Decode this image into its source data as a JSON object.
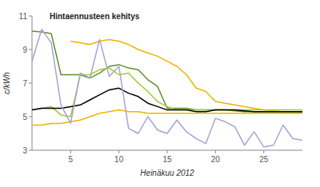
{
  "chart_data": {
    "type": "line",
    "title": "Hintaennusteen kehitys",
    "x_label": "Heinäkuu 2012",
    "y_label": "c/kWh",
    "x": [
      1,
      2,
      3,
      4,
      5,
      6,
      7,
      8,
      9,
      10,
      11,
      12,
      13,
      14,
      15,
      16,
      17,
      18,
      19,
      20,
      21,
      22,
      23,
      24,
      25,
      26,
      27,
      28,
      29
    ],
    "xlim": [
      1,
      29
    ],
    "xticks": [
      5,
      10,
      15,
      20,
      25
    ],
    "ylim": [
      3,
      11
    ],
    "yticks": [
      3,
      5,
      7,
      9,
      11
    ],
    "grid": false,
    "series": [
      {
        "color": "#f0b400",
        "values": [
          null,
          null,
          null,
          null,
          9.5,
          9.4,
          9.3,
          9.5,
          9.6,
          9.5,
          9.3,
          9.0,
          8.8,
          8.6,
          8.3,
          8.0,
          7.5,
          6.7,
          6.5,
          5.9,
          5.8,
          5.7,
          5.6,
          5.5,
          5.4,
          5.35,
          5.3,
          5.3,
          5.3
        ]
      },
      {
        "color": "#f0b400",
        "values": [
          4.5,
          4.5,
          4.6,
          4.6,
          4.7,
          4.8,
          5.0,
          5.2,
          5.3,
          5.4,
          5.3,
          5.3,
          5.2,
          5.2,
          5.2,
          5.2,
          5.2,
          5.2,
          5.2,
          5.2,
          5.2,
          5.2,
          5.2,
          5.2,
          5.2,
          5.2,
          5.2,
          5.2,
          5.2
        ]
      },
      {
        "color": "#5f8f2a",
        "values": [
          10.1,
          10.05,
          9.95,
          7.5,
          7.5,
          7.5,
          7.3,
          7.6,
          8.0,
          8.1,
          7.9,
          7.8,
          7.2,
          6.8,
          5.5,
          5.5,
          5.5,
          5.4,
          5.4,
          5.4,
          5.4,
          5.35,
          5.3,
          5.3,
          5.3,
          5.3,
          5.3,
          5.3,
          5.3
        ]
      },
      {
        "color": "#9acd32",
        "values": [
          5.4,
          5.5,
          5.6,
          5.1,
          5.0,
          7.5,
          7.5,
          7.8,
          7.9,
          7.5,
          7.6,
          7.0,
          6.5,
          5.9,
          5.6,
          5.4,
          5.4,
          5.4,
          5.4,
          5.4,
          5.4,
          5.4,
          5.4,
          5.4,
          5.4,
          5.4,
          5.4,
          5.4,
          5.4
        ]
      },
      {
        "color": "#000000",
        "values": [
          5.4,
          5.5,
          5.5,
          5.5,
          5.6,
          5.7,
          6.0,
          6.3,
          6.6,
          6.7,
          6.4,
          6.2,
          5.8,
          5.6,
          5.4,
          5.4,
          5.4,
          5.3,
          5.3,
          5.4,
          5.4,
          5.4,
          5.35,
          5.3,
          5.3,
          5.3,
          5.3,
          5.3,
          5.3
        ]
      },
      {
        "color": "#aaa0d8",
        "values": [
          8.3,
          10.2,
          9.4,
          5.7,
          4.6,
          7.6,
          7.3,
          9.6,
          7.4,
          8.0,
          4.3,
          4.0,
          5.0,
          4.2,
          4.0,
          4.8,
          4.1,
          3.7,
          3.4,
          4.9,
          4.7,
          4.4,
          3.3,
          4.1,
          3.2,
          3.3,
          4.5,
          3.7,
          3.6
        ]
      }
    ]
  }
}
